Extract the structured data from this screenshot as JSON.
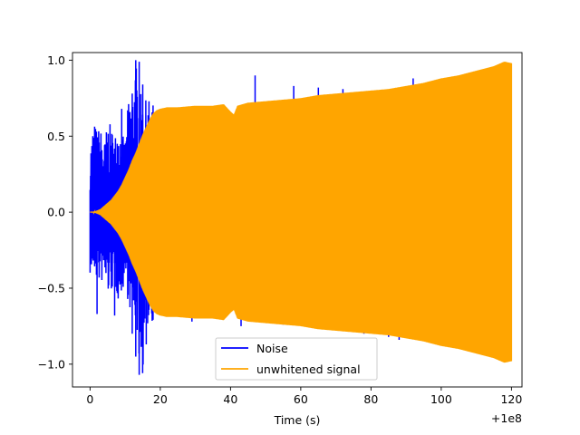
{
  "chart_data": {
    "type": "line",
    "title": "",
    "xlabel": "Time (s)",
    "ylabel": "",
    "x_offset_label": "+1e8",
    "xlim": [
      -5,
      123
    ],
    "ylim": [
      -1.15,
      1.05
    ],
    "x_ticks": [
      0,
      20,
      40,
      60,
      80,
      100,
      120
    ],
    "x_tick_labels": [
      "0",
      "20",
      "40",
      "60",
      "80",
      "100",
      "120"
    ],
    "y_ticks": [
      -1.0,
      -0.5,
      0.0,
      0.5,
      1.0
    ],
    "y_tick_labels": [
      "−1.0",
      "−0.5",
      "0.0",
      "0.5",
      "1.0"
    ],
    "grid": false,
    "legend_placement": "lower center",
    "series": [
      {
        "name": "Noise",
        "color": "#0000ff",
        "x_range": [
          0,
          18
        ],
        "envelope_max": [
          [
            0,
            0.42
          ],
          [
            1,
            0.61
          ],
          [
            2,
            0.55
          ],
          [
            3,
            0.56
          ],
          [
            4,
            0.45
          ],
          [
            5,
            0.6
          ],
          [
            6,
            0.57
          ],
          [
            7,
            0.5
          ],
          [
            8,
            0.62
          ],
          [
            9,
            0.52
          ],
          [
            10,
            0.47
          ],
          [
            11,
            0.76
          ],
          [
            12,
            0.8
          ],
          [
            13,
            1.0
          ],
          [
            14,
            0.82
          ],
          [
            15,
            0.73
          ],
          [
            16,
            0.74
          ],
          [
            17,
            0.75
          ],
          [
            18,
            0.72
          ]
        ],
        "envelope_min": [
          [
            0,
            -0.42
          ],
          [
            1,
            -0.39
          ],
          [
            2,
            -0.45
          ],
          [
            3,
            -0.48
          ],
          [
            4,
            -0.45
          ],
          [
            5,
            -0.55
          ],
          [
            6,
            -0.53
          ],
          [
            7,
            -0.5
          ],
          [
            8,
            -0.58
          ],
          [
            9,
            -0.54
          ],
          [
            10,
            -0.46
          ],
          [
            11,
            -0.62
          ],
          [
            12,
            -0.7
          ],
          [
            13,
            -0.72
          ],
          [
            14,
            -0.98
          ],
          [
            15,
            -1.08
          ],
          [
            16,
            -0.8
          ],
          [
            17,
            -0.72
          ],
          [
            18,
            -0.72
          ]
        ],
        "spikes": [
          [
            13,
            1.0
          ],
          [
            14,
            0.99
          ],
          [
            9,
            0.68
          ],
          [
            12,
            0.78
          ],
          [
            15,
            0.84
          ],
          [
            40,
            0.63
          ],
          [
            47,
            0.9
          ],
          [
            58,
            0.83
          ],
          [
            65,
            0.82
          ],
          [
            72,
            0.81
          ],
          [
            82,
            0.78
          ],
          [
            92,
            0.88
          ],
          [
            2,
            -0.67
          ],
          [
            7,
            -0.68
          ],
          [
            12,
            -0.8
          ],
          [
            13,
            -0.95
          ],
          [
            14,
            -1.07
          ],
          [
            16,
            -0.87
          ],
          [
            29,
            -0.72
          ],
          [
            43,
            -0.75
          ],
          [
            55,
            -0.74
          ],
          [
            61,
            -0.72
          ],
          [
            66,
            -0.76
          ],
          [
            78,
            -0.8
          ],
          [
            85,
            -0.82
          ],
          [
            88,
            -0.84
          ]
        ]
      },
      {
        "name": "unwhitened signal",
        "color": "#ffa500",
        "x_range": [
          0,
          120
        ],
        "envelope": [
          [
            0,
            0.0
          ],
          [
            1,
            0.0
          ],
          [
            2,
            0.01
          ],
          [
            3,
            0.02
          ],
          [
            4,
            0.04
          ],
          [
            5,
            0.06
          ],
          [
            6,
            0.08
          ],
          [
            7,
            0.11
          ],
          [
            8,
            0.14
          ],
          [
            9,
            0.18
          ],
          [
            10,
            0.23
          ],
          [
            11,
            0.28
          ],
          [
            12,
            0.34
          ],
          [
            13,
            0.39
          ],
          [
            14,
            0.45
          ],
          [
            15,
            0.51
          ],
          [
            16,
            0.56
          ],
          [
            17,
            0.61
          ],
          [
            18,
            0.65
          ],
          [
            19,
            0.67
          ],
          [
            20,
            0.68
          ],
          [
            22,
            0.69
          ],
          [
            25,
            0.69
          ],
          [
            30,
            0.7
          ],
          [
            35,
            0.7
          ],
          [
            38,
            0.71
          ],
          [
            40,
            0.66
          ],
          [
            41,
            0.64
          ],
          [
            42,
            0.7
          ],
          [
            45,
            0.72
          ],
          [
            50,
            0.73
          ],
          [
            55,
            0.74
          ],
          [
            60,
            0.75
          ],
          [
            65,
            0.77
          ],
          [
            70,
            0.78
          ],
          [
            75,
            0.79
          ],
          [
            80,
            0.8
          ],
          [
            85,
            0.81
          ],
          [
            90,
            0.83
          ],
          [
            95,
            0.85
          ],
          [
            100,
            0.88
          ],
          [
            105,
            0.9
          ],
          [
            110,
            0.93
          ],
          [
            115,
            0.96
          ],
          [
            118,
            0.99
          ],
          [
            120,
            0.98
          ]
        ]
      }
    ]
  }
}
